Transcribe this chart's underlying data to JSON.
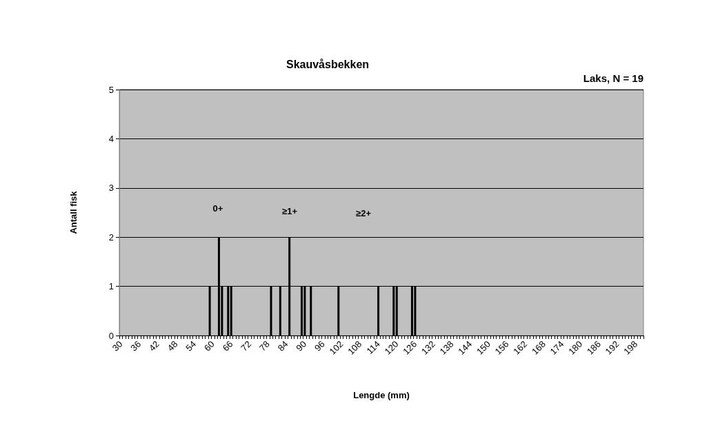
{
  "chart_data": {
    "type": "bar",
    "title": "Skauvåsbekken",
    "subtitle": "Laks, N = 19",
    "xlabel": "Lengde (mm)",
    "ylabel": "Antall fisk",
    "annotations": [
      "0+",
      "≥1+",
      "≥2+"
    ],
    "categories": [
      "30",
      null,
      null,
      null,
      null,
      null,
      "36",
      null,
      null,
      null,
      null,
      null,
      "42",
      null,
      null,
      null,
      null,
      null,
      "48",
      null,
      null,
      null,
      null,
      null,
      "54",
      null,
      null,
      null,
      null,
      null,
      "60",
      null,
      null,
      null,
      null,
      null,
      "66",
      null,
      null,
      null,
      null,
      null,
      "72",
      null,
      null,
      null,
      null,
      null,
      "78",
      null,
      null,
      null,
      null,
      null,
      "84",
      null,
      null,
      null,
      null,
      null,
      "90",
      null,
      null,
      null,
      null,
      null,
      "96",
      null,
      null,
      null,
      null,
      null,
      "102",
      null,
      null,
      null,
      null,
      null,
      "108",
      null,
      null,
      null,
      null,
      null,
      "114",
      null,
      null,
      null,
      null,
      null,
      "120",
      null,
      null,
      null,
      null,
      null,
      "126",
      null,
      null,
      null,
      null,
      null,
      "132",
      null,
      null,
      null,
      null,
      null,
      "138",
      null,
      null,
      null,
      null,
      null,
      "144",
      null,
      null,
      null,
      null,
      null,
      "150",
      null,
      null,
      null,
      null,
      null,
      "156",
      null,
      null,
      null,
      null,
      null,
      "162",
      null,
      null,
      null,
      null,
      null,
      "168",
      null,
      null,
      null,
      null,
      null,
      "174",
      null,
      null,
      null,
      null,
      null,
      "180",
      null,
      null,
      null,
      null,
      null,
      "186",
      null,
      null,
      null,
      null,
      null,
      "192",
      null,
      null,
      null,
      null,
      null,
      "198",
      null,
      null
    ],
    "values": [
      0,
      0,
      0,
      0,
      0,
      0,
      0,
      0,
      0,
      0,
      0,
      0,
      0,
      0,
      0,
      0,
      0,
      0,
      0,
      0,
      0,
      0,
      0,
      0,
      0,
      0,
      0,
      0,
      0,
      1,
      0,
      0,
      2,
      1,
      0,
      1,
      1,
      0,
      0,
      0,
      0,
      0,
      0,
      0,
      0,
      0,
      0,
      0,
      0,
      1,
      0,
      0,
      1,
      0,
      0,
      2,
      0,
      0,
      0,
      1,
      1,
      0,
      1,
      0,
      0,
      0,
      0,
      0,
      0,
      0,
      0,
      1,
      0,
      0,
      0,
      0,
      0,
      0,
      0,
      0,
      0,
      0,
      0,
      0,
      1,
      0,
      0,
      0,
      0,
      1,
      1,
      0,
      0,
      0,
      0,
      1,
      1,
      0,
      0,
      0,
      0,
      0,
      0,
      0,
      0,
      0,
      0,
      0,
      0,
      0,
      0,
      0,
      0,
      0,
      0,
      0,
      0,
      0,
      0,
      0,
      0,
      0,
      0,
      0,
      0,
      0,
      0,
      0,
      0,
      0,
      0,
      0,
      0,
      0,
      0,
      0,
      0,
      0,
      0,
      0,
      0,
      0,
      0,
      0,
      0,
      0,
      0,
      0,
      0,
      0,
      0,
      0,
      0,
      0,
      0,
      0,
      0,
      0,
      0,
      0,
      0,
      0,
      0,
      0,
      0,
      0,
      0,
      0,
      0,
      0,
      0
    ],
    "color": "#000000",
    "ylim": [
      0,
      5
    ],
    "yticks": [
      0,
      1,
      2,
      3,
      4,
      5
    ],
    "grid": "y"
  }
}
